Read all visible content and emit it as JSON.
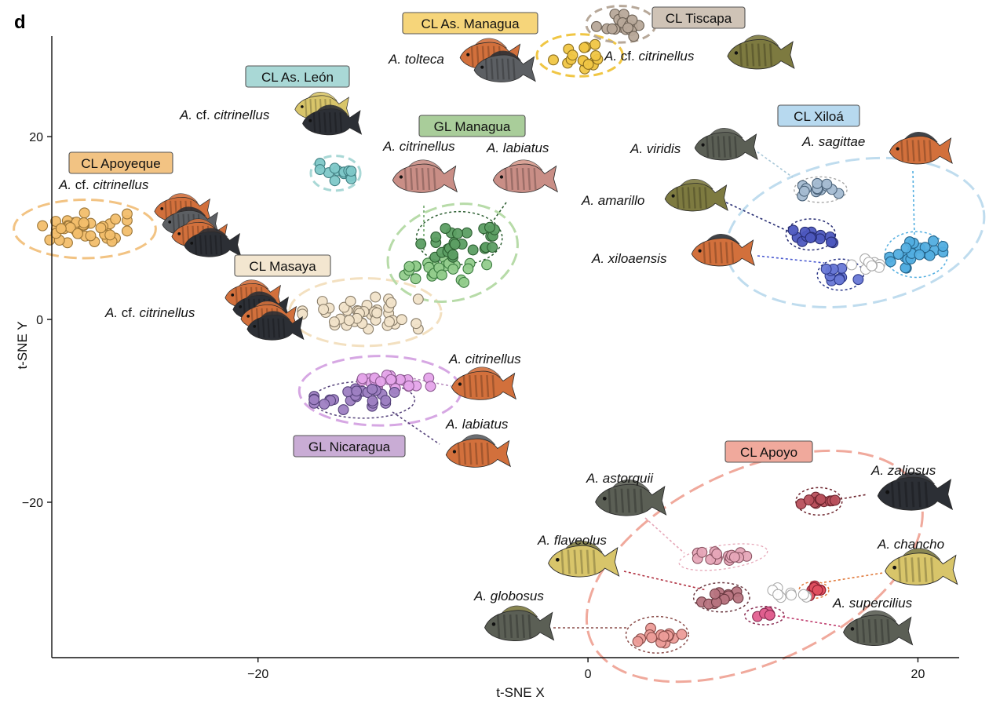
{
  "chart_data": {
    "type": "scatter",
    "panel_label": "d",
    "xlabel": "t-SNE X",
    "ylabel": "t-SNE Y",
    "xlim": [
      -32.5,
      22.5
    ],
    "ylim": [
      -37,
      31
    ],
    "xticks": [
      -20,
      0,
      20
    ],
    "yticks": [
      -20,
      0,
      20
    ],
    "grid": false,
    "legend": "none",
    "lake_labels": [
      {
        "text": "CL As. Managua",
        "fill": "#f6d57a"
      },
      {
        "text": "CL Tiscapa",
        "fill": "#cfc3b6"
      },
      {
        "text": "CL As. León",
        "fill": "#a9d8d6"
      },
      {
        "text": "GL Managua",
        "fill": "#a9cd9a"
      },
      {
        "text": "CL Apoyeque",
        "fill": "#f2c383"
      },
      {
        "text": "CL Xiloá",
        "fill": "#b7d9ef"
      },
      {
        "text": "CL Masaya",
        "fill": "#f3e6d0"
      },
      {
        "text": "GL Nicaragua",
        "fill": "#c9acd5"
      },
      {
        "text": "CL Apoyo",
        "fill": "#f0a99c"
      }
    ],
    "species_labels": [
      {
        "genus": "A.",
        "cf": "",
        "epithet": "tolteca"
      },
      {
        "genus": "A.",
        "cf": "cf.",
        "epithet": "citrinellus"
      },
      {
        "genus": "A.",
        "cf": "cf.",
        "epithet": "citrinellus"
      },
      {
        "genus": "A.",
        "cf": "",
        "epithet": "citrinellus"
      },
      {
        "genus": "A.",
        "cf": "",
        "epithet": "labiatus"
      },
      {
        "genus": "A.",
        "cf": "cf.",
        "epithet": "citrinellus"
      },
      {
        "genus": "A.",
        "cf": "",
        "epithet": "viridis"
      },
      {
        "genus": "A.",
        "cf": "",
        "epithet": "sagittae"
      },
      {
        "genus": "A.",
        "cf": "",
        "epithet": "amarillo"
      },
      {
        "genus": "A.",
        "cf": "",
        "epithet": "xiloaensis"
      },
      {
        "genus": "A.",
        "cf": "cf.",
        "epithet": "citrinellus"
      },
      {
        "genus": "A.",
        "cf": "",
        "epithet": "citrinellus"
      },
      {
        "genus": "A.",
        "cf": "",
        "epithet": "labiatus"
      },
      {
        "genus": "A.",
        "cf": "",
        "epithet": "astorquii"
      },
      {
        "genus": "A.",
        "cf": "",
        "epithet": "zaliosus"
      },
      {
        "genus": "A.",
        "cf": "",
        "epithet": "flaveolus"
      },
      {
        "genus": "A.",
        "cf": "",
        "epithet": "chancho"
      },
      {
        "genus": "A.",
        "cf": "",
        "epithet": "globosus"
      },
      {
        "genus": "A.",
        "cf": "",
        "epithet": "supercilius"
      }
    ],
    "clusters": [
      {
        "lake": "CL As. Managua",
        "fill": "#f0c644",
        "stroke": "#8a6d1e",
        "center": [
          -0.5,
          28.9
        ],
        "spread": [
          1.2,
          1.1
        ],
        "n": 16
      },
      {
        "lake": "CL Tiscapa",
        "fill": "#b7a899",
        "stroke": "#6b6054",
        "center": [
          2.0,
          32.3
        ],
        "spread": [
          1.1,
          1.0
        ],
        "n": 18
      },
      {
        "lake": "CL As. León",
        "fill": "#7ec8c8",
        "stroke": "#3f7f82",
        "center": [
          -15.3,
          16.0
        ],
        "spread": [
          0.7,
          0.8
        ],
        "n": 12
      },
      {
        "lake": "CL Apoyeque",
        "fill": "#f2be6c",
        "stroke": "#9a7436",
        "center": [
          -30.5,
          9.9
        ],
        "spread": [
          1.9,
          1.3
        ],
        "n": 42
      },
      {
        "lake": "CL Masaya",
        "fill": "#f1e3c9",
        "stroke": "#8a7e6a",
        "center": [
          -13.8,
          0.7
        ],
        "spread": [
          2.6,
          1.3
        ],
        "n": 45
      },
      {
        "lake": "GL Managua (A. citrinellus)",
        "fill": "#92cc8c",
        "stroke": "#3a7a3f",
        "center": [
          -8.7,
          5.4
        ],
        "spread": [
          1.9,
          1.0
        ],
        "n": 26
      },
      {
        "lake": "GL Managua (A. labiatus)",
        "fill": "#5c9e63",
        "stroke": "#2c5e31",
        "center": [
          -7.7,
          8.7
        ],
        "spread": [
          1.8,
          1.4
        ],
        "n": 26
      },
      {
        "lake": "GL Nicaragua (A. citrinellus)",
        "fill": "#e5a4ea",
        "stroke": "#8e5b93",
        "center": [
          -11.8,
          -6.7
        ],
        "spread": [
          1.7,
          0.8
        ],
        "n": 26
      },
      {
        "lake": "GL Nicaragua (A. labiatus)",
        "fill": "#9e7fc2",
        "stroke": "#55427a",
        "center": [
          -13.9,
          -8.8
        ],
        "spread": [
          2.0,
          0.9
        ],
        "n": 26
      },
      {
        "lake": "CL Xiloá (A. viridis)",
        "fill": "#a5bcd2",
        "stroke": "#4a6279",
        "center": [
          14.1,
          14.2
        ],
        "spread": [
          1.0,
          0.5
        ],
        "n": 14
      },
      {
        "lake": "CL Xiloá (A. amarillo)",
        "fill": "#4d59bf",
        "stroke": "#272d73",
        "center": [
          13.5,
          9.3
        ],
        "spread": [
          1.0,
          0.7
        ],
        "n": 14
      },
      {
        "lake": "CL Xiloá (A. xiloaensis)",
        "fill": "#6878d6",
        "stroke": "#2e3a8a",
        "center": [
          15.3,
          4.9
        ],
        "spread": [
          0.8,
          0.7
        ],
        "n": 10
      },
      {
        "lake": "CL Xiloá (A. sagittae)",
        "fill": "#52aee0",
        "stroke": "#25648a",
        "center": [
          19.9,
          7.1
        ],
        "spread": [
          1.2,
          1.1
        ],
        "n": 22
      },
      {
        "lake": "CL Xiloá (unassigned)",
        "fill": "#ffffff",
        "stroke": "#aaaaaa",
        "center": [
          17.2,
          6.1
        ],
        "spread": [
          0.9,
          0.6
        ],
        "n": 10
      },
      {
        "lake": "CL Apoyo (A. zaliosus)",
        "fill": "#b8505c",
        "stroke": "#6e262f",
        "center": [
          14.0,
          -19.8
        ],
        "spread": [
          0.8,
          0.6
        ],
        "n": 12
      },
      {
        "lake": "CL Apoyo (A. astorquii)",
        "fill": "#e6a7b8",
        "stroke": "#8a5563",
        "center": [
          8.4,
          -25.9
        ],
        "spread": [
          1.3,
          0.6
        ],
        "n": 16
      },
      {
        "lake": "CL Apoyo (A. flaveolus)",
        "fill": "#b7747f",
        "stroke": "#6b3a42",
        "center": [
          8.1,
          -30.4
        ],
        "spread": [
          1.0,
          0.6
        ],
        "n": 12
      },
      {
        "lake": "CL Apoyo (A. chancho)",
        "fill": "#e05060",
        "stroke": "#8a2030",
        "center": [
          13.7,
          -29.7
        ],
        "spread": [
          0.5,
          0.4
        ],
        "n": 8
      },
      {
        "lake": "CL Apoyo (A. supercilius)",
        "fill": "#e26090",
        "stroke": "#8a2c52",
        "center": [
          10.7,
          -32.4
        ],
        "spread": [
          0.6,
          0.3
        ],
        "n": 6
      },
      {
        "lake": "CL Apoyo (A. globosus)",
        "fill": "#ec9c98",
        "stroke": "#8b4d4a",
        "center": [
          4.2,
          -34.6
        ],
        "spread": [
          1.1,
          0.6
        ],
        "n": 16
      },
      {
        "lake": "CL Apoyo (unassigned)",
        "fill": "#ffffff",
        "stroke": "#aaaaaa",
        "center": [
          12.3,
          -29.9
        ],
        "spread": [
          1.0,
          0.4
        ],
        "n": 10
      }
    ],
    "fish_colors": {
      "orange": "#d2703c",
      "dark": "#2c2f35",
      "olive": "#7d7a40",
      "gray": "#5c5f63",
      "pink": "#c98e86",
      "yellow": "#d8c56a",
      "barred": "#5b5f55"
    }
  }
}
